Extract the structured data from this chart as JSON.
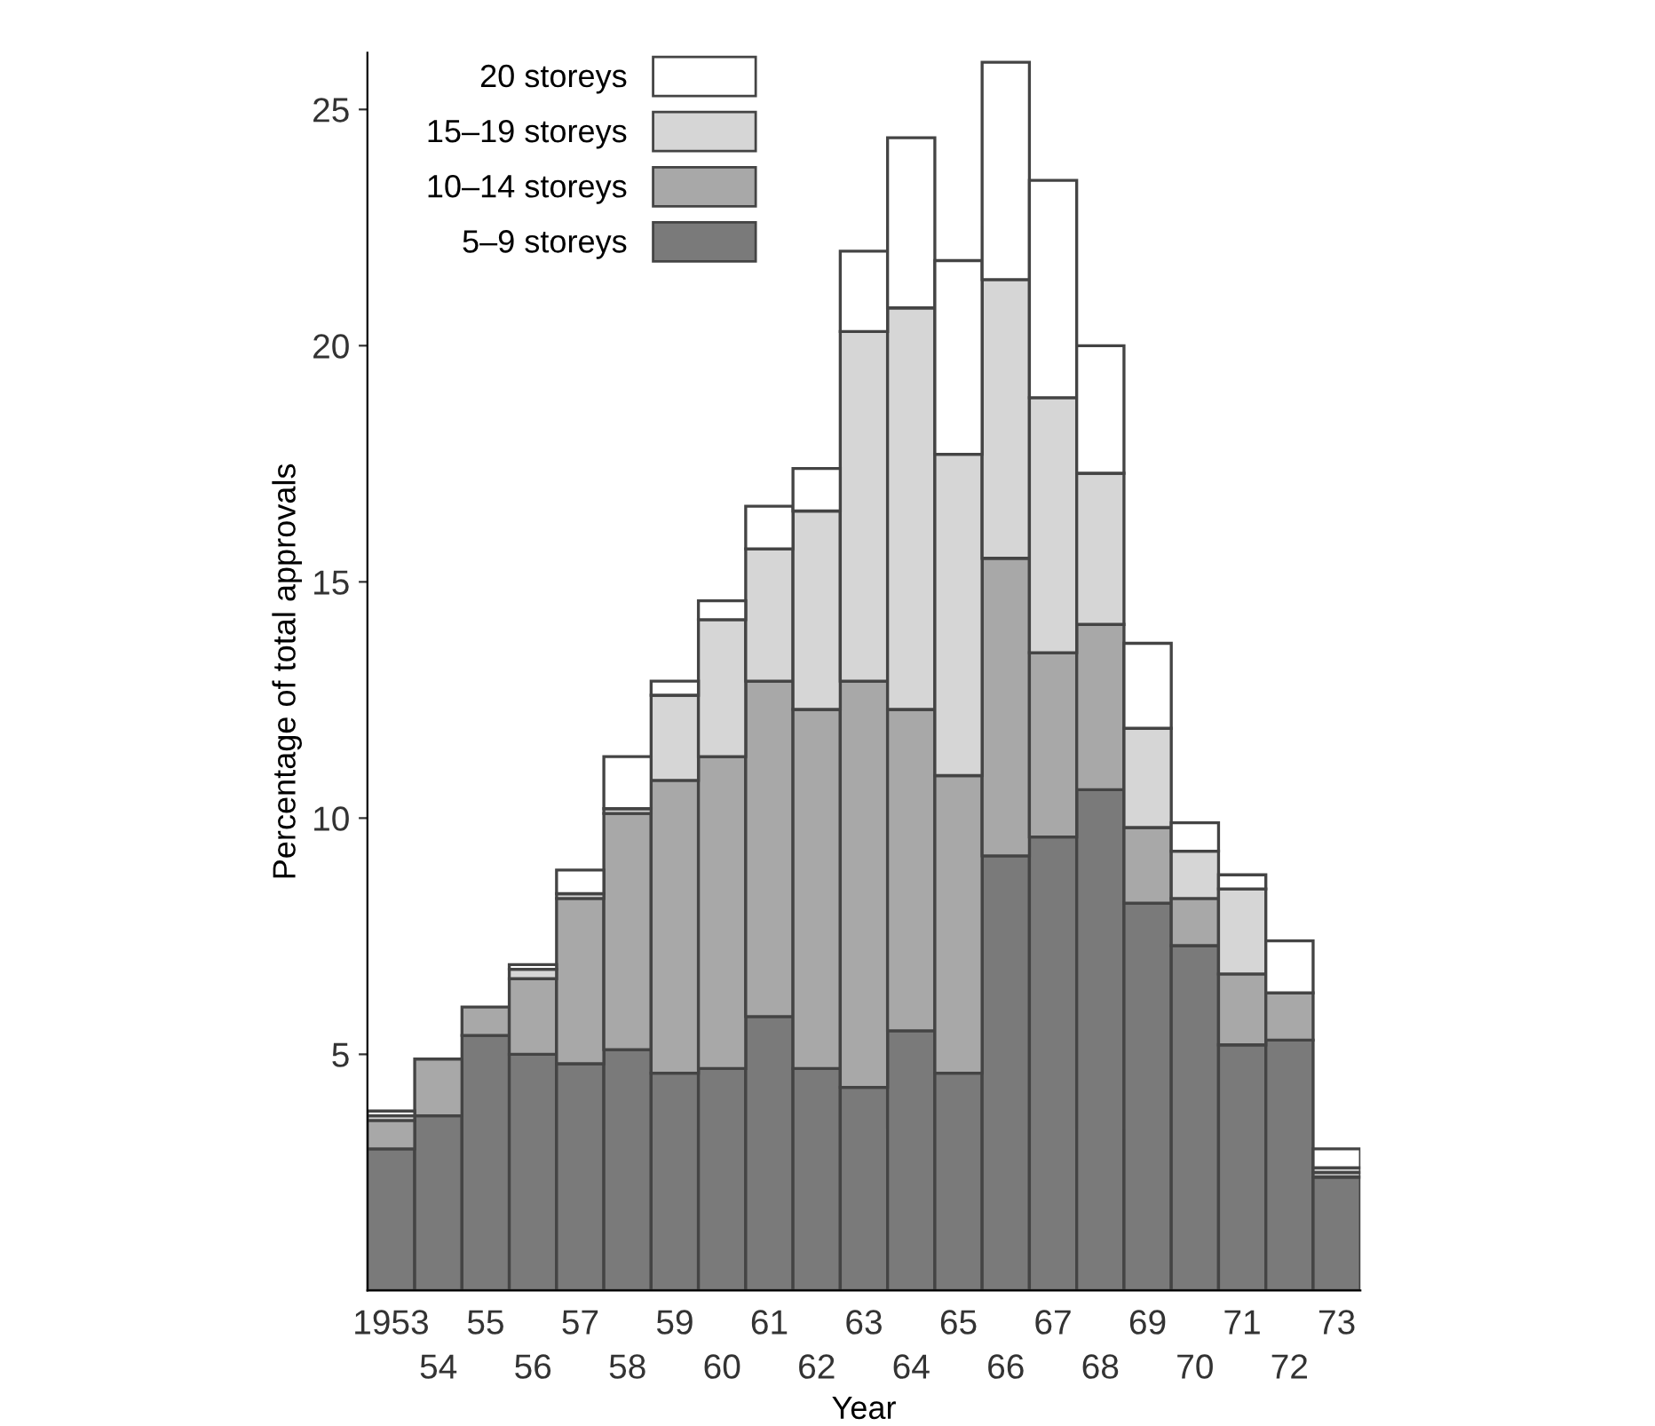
{
  "chart_data": {
    "type": "bar",
    "stacked": true,
    "xlabel": "Year",
    "ylabel": "Percentage of total approvals",
    "categories": [
      "1953",
      "54",
      "55",
      "56",
      "57",
      "58",
      "59",
      "60",
      "61",
      "62",
      "63",
      "64",
      "65",
      "66",
      "67",
      "68",
      "69",
      "70",
      "71",
      "72",
      "73"
    ],
    "series": [
      {
        "name": "5–9 storeys",
        "color": "#7a7a7a",
        "values": [
          3.0,
          3.7,
          5.4,
          5.0,
          4.8,
          5.1,
          4.6,
          4.7,
          5.8,
          4.7,
          4.3,
          5.5,
          4.6,
          9.2,
          9.6,
          10.6,
          8.2,
          7.3,
          5.2,
          5.3,
          2.4
        ]
      },
      {
        "name": "10–14 storeys",
        "color": "#a8a8a8",
        "values": [
          0.6,
          1.2,
          0.6,
          1.6,
          3.5,
          5.0,
          6.2,
          6.6,
          7.1,
          7.6,
          8.6,
          6.8,
          6.3,
          6.3,
          3.9,
          3.5,
          1.6,
          1.0,
          1.5,
          1.0,
          0.1
        ]
      },
      {
        "name": "15–19 storeys",
        "color": "#d6d6d6",
        "values": [
          0.1,
          null,
          null,
          0.2,
          0.1,
          0.1,
          1.8,
          2.9,
          2.8,
          4.2,
          7.4,
          8.5,
          6.8,
          5.9,
          5.4,
          3.2,
          2.1,
          1.0,
          1.8,
          null,
          0.1
        ]
      },
      {
        "name": "20 storeys",
        "color": "#ffffff",
        "values": [
          0.1,
          null,
          null,
          0.1,
          0.5,
          1.1,
          0.3,
          0.4,
          0.9,
          0.9,
          1.7,
          3.6,
          4.1,
          4.6,
          4.6,
          2.7,
          1.8,
          0.6,
          0.3,
          1.1,
          0.4
        ]
      }
    ],
    "ylim": [
      0,
      26.2
    ],
    "yticks": [
      5,
      10,
      15,
      20,
      25
    ],
    "grid": false,
    "legend": "top left"
  }
}
